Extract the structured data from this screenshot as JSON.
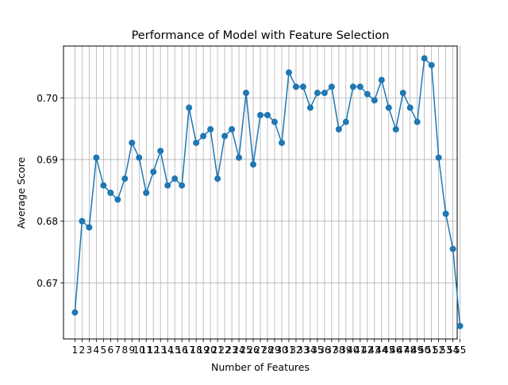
{
  "chart_data": {
    "type": "line",
    "title": "Performance of Model with Feature Selection",
    "xlabel": "Number of Features",
    "ylabel": "Average Score",
    "grid": true,
    "color": "#1f77b4",
    "marker": "circle",
    "xlim": [
      -0.6,
      54.6
    ],
    "ylim": [
      0.6609,
      0.7084
    ],
    "x": [
      1,
      2,
      3,
      4,
      5,
      6,
      7,
      8,
      9,
      10,
      11,
      12,
      13,
      14,
      15,
      16,
      17,
      18,
      19,
      20,
      21,
      22,
      23,
      24,
      25,
      26,
      27,
      28,
      29,
      30,
      31,
      32,
      33,
      34,
      35,
      36,
      37,
      38,
      39,
      40,
      41,
      42,
      43,
      44,
      45,
      46,
      47,
      48,
      49,
      50,
      51,
      52,
      53,
      54,
      55
    ],
    "y": [
      0.6652,
      0.68,
      0.679,
      0.6903,
      0.6858,
      0.6846,
      0.6835,
      0.6869,
      0.6927,
      0.6903,
      0.6846,
      0.688,
      0.6914,
      0.6858,
      0.6869,
      0.6858,
      0.6984,
      0.6927,
      0.6938,
      0.6949,
      0.6869,
      0.6938,
      0.6949,
      0.6903,
      0.7008,
      0.6892,
      0.6972,
      0.6972,
      0.6961,
      0.6927,
      0.7041,
      0.7018,
      0.7018,
      0.6984,
      0.7008,
      0.7008,
      0.7018,
      0.6949,
      0.6961,
      0.7018,
      0.7018,
      0.7006,
      0.6996,
      0.7029,
      0.6984,
      0.6949,
      0.7008,
      0.6984,
      0.6961,
      0.7064,
      0.7053,
      0.6903,
      0.6812,
      0.6755,
      0.663
    ],
    "xticks": [
      1,
      2,
      3,
      4,
      5,
      6,
      7,
      8,
      9,
      10,
      11,
      12,
      13,
      14,
      15,
      16,
      17,
      18,
      19,
      20,
      21,
      22,
      23,
      24,
      25,
      26,
      27,
      28,
      29,
      30,
      31,
      32,
      33,
      34,
      35,
      36,
      37,
      38,
      39,
      40,
      41,
      42,
      43,
      44,
      45,
      46,
      47,
      48,
      49,
      50,
      51,
      52,
      53,
      54,
      55
    ],
    "yticks": [
      0.67,
      0.68,
      0.69,
      0.7
    ],
    "ytick_labels": [
      "0.67",
      "0.68",
      "0.69",
      "0.70"
    ]
  }
}
